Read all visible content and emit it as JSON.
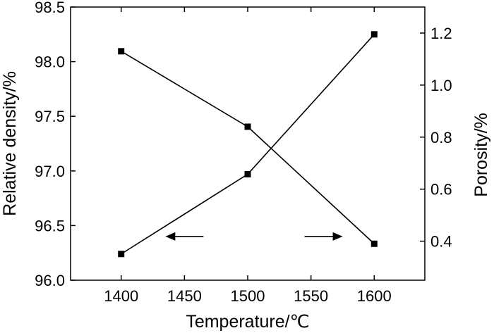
{
  "chart_data": {
    "type": "line",
    "title": "",
    "xlabel": "Temperature/℃",
    "ylabel_left": "Relative density/%",
    "ylabel_right": "Porosity/%",
    "xlim": [
      1360,
      1640
    ],
    "ylim_left": [
      96.0,
      98.5
    ],
    "ylim_right": [
      0.25,
      1.3
    ],
    "x_ticks": [
      "1400",
      "1450",
      "1500",
      "1550",
      "1600"
    ],
    "y_left_ticks": [
      "96.0",
      "96.5",
      "97.0",
      "97.5",
      "98.0",
      "98.5"
    ],
    "y_right_ticks": [
      "0.4",
      "0.6",
      "0.8",
      "1.0",
      "1.2"
    ],
    "x": [
      1400,
      1500,
      1600
    ],
    "series": [
      {
        "axis": "left",
        "values": [
          96.24,
          96.97,
          98.25
        ]
      },
      {
        "axis": "right",
        "values": [
          1.13,
          0.84,
          0.39
        ]
      }
    ],
    "annotations": [
      {
        "type": "arrow",
        "direction": "left",
        "target_axis": "left",
        "at_x": 1450,
        "at_y_left": 96.4
      },
      {
        "type": "arrow",
        "direction": "right",
        "target_axis": "right",
        "at_x": 1560,
        "at_y_left": 96.4
      }
    ],
    "marker": "square",
    "color": "#000000",
    "grid": false,
    "legend": "none"
  }
}
